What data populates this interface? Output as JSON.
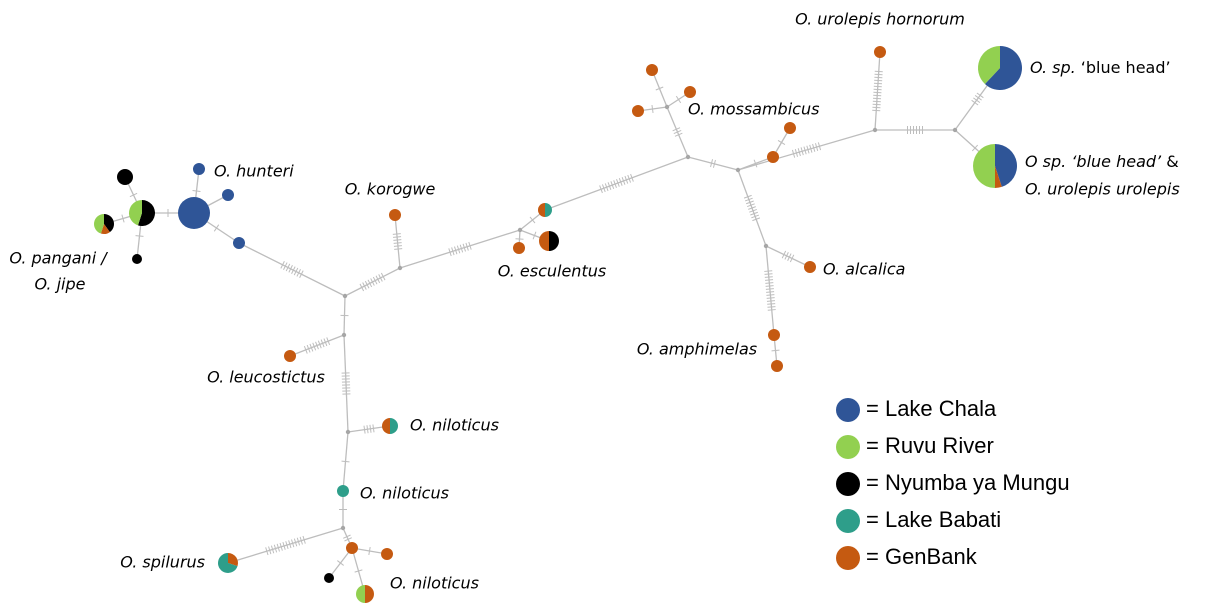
{
  "labels": [
    "O. urolepis hornorum",
    "O. mossambicus",
    "O. hunteri",
    "O. korogwe",
    "O. pangani /",
    "O. jipe",
    "O. esculentus",
    "O. alcalica",
    "O. amphimelas",
    "O. leucostictus",
    "O. niloticus",
    "O. niloticus",
    "O. niloticus",
    "O. spilurus"
  ],
  "blue_head": {
    "species": "O. sp.",
    "name": "‘blue head’"
  },
  "blue_head_urolepis": {
    "line1": "O sp. ‘blue head’",
    "amp": "&",
    "line2": "O. urolepis urolepis"
  },
  "legend": [
    {
      "label": "= Lake Chala",
      "color": "#2f5597"
    },
    {
      "label": "= Ruvu River",
      "color": "#92d050"
    },
    {
      "label": "= Nyumba ya Mungu",
      "color": "#000000"
    },
    {
      "label": "= Lake Babati",
      "color": "#2e9e8a"
    },
    {
      "label": "= GenBank",
      "color": "#c55a11"
    }
  ]
}
